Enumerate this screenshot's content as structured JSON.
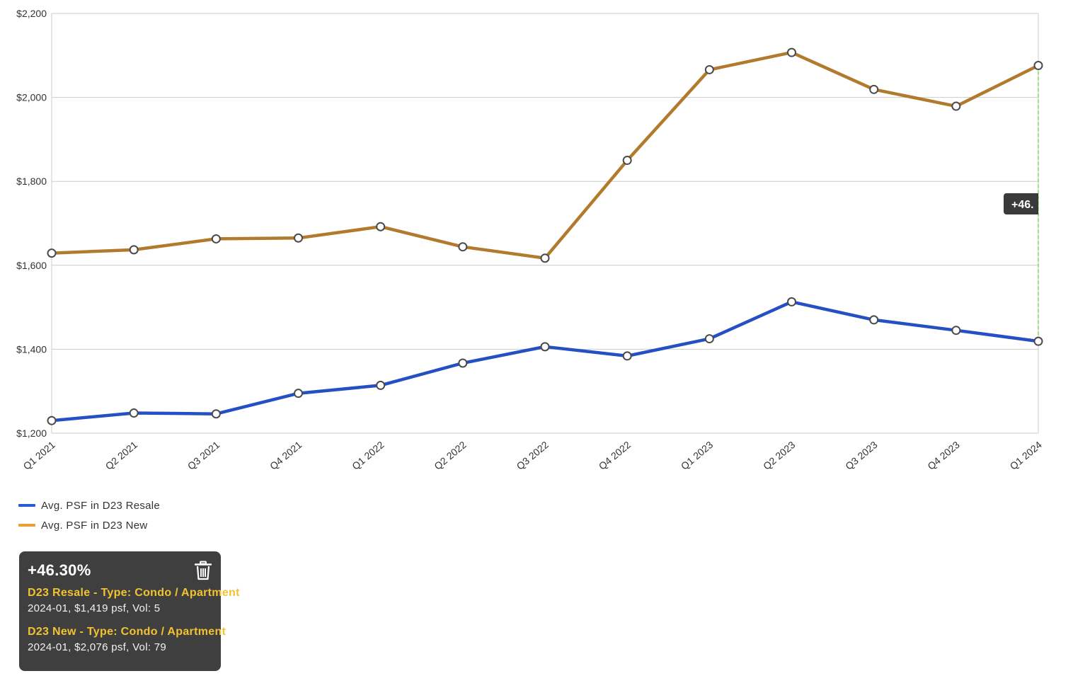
{
  "chart_data": {
    "type": "line",
    "categories": [
      "Q1 2021",
      "Q2 2021",
      "Q3 2021",
      "Q4 2021",
      "Q1 2022",
      "Q2 2022",
      "Q3 2022",
      "Q4 2022",
      "Q1 2023",
      "Q2 2023",
      "Q3 2023",
      "Q4 2023",
      "Q1 2024"
    ],
    "y_ticks": [
      "$1,200",
      "$1,400",
      "$1,600",
      "$1,800",
      "$2,000",
      "$2,200"
    ],
    "ylim": [
      1200,
      2200
    ],
    "grid": true,
    "legend_position": "bottom-left",
    "series": [
      {
        "name": "Avg. PSF in D23 Resale",
        "color": "#2450c4",
        "legend_color": "#2a5bd7",
        "values": [
          1230,
          1248,
          1246,
          1295,
          1314,
          1367,
          1406,
          1384,
          1425,
          1513,
          1470,
          1445,
          1419
        ]
      },
      {
        "name": "Avg. PSF in D23 New",
        "color": "#b17a2c",
        "legend_color": "#e8a034",
        "values": [
          1629,
          1637,
          1663,
          1665,
          1692,
          1644,
          1617,
          1850,
          2066,
          2107,
          2019,
          1979,
          2076
        ]
      }
    ],
    "marker_label": "+46.",
    "marker_color": "#7ed957"
  },
  "card": {
    "percent": "+46.30%",
    "trash_icon": "trash-icon",
    "entries": [
      {
        "title": "D23 Resale - Type: Condo / Apartment",
        "detail": "2024-01, $1,419 psf, Vol: 5"
      },
      {
        "title": "D23 New - Type: Condo / Apartment",
        "detail": "2024-01, $2,076 psf, Vol: 79"
      }
    ]
  }
}
